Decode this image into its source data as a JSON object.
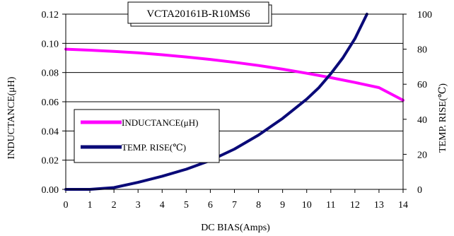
{
  "chart_data": {
    "type": "line",
    "title": "VCTA20161B-R10MS6",
    "xlabel": "DC BIAS(Amps)",
    "ylabel_left": "INDUCTANCE(μH)",
    "ylabel_right": "TEMP. RISE(℃)",
    "xlim": [
      0,
      14
    ],
    "ylim_left": [
      0,
      0.12
    ],
    "ylim_right": [
      0,
      100
    ],
    "x_ticks": [
      "0",
      "1",
      "2",
      "3",
      "4",
      "5",
      "6",
      "7",
      "8",
      "9",
      "10",
      "11",
      "12",
      "13",
      "14"
    ],
    "y_ticks_left": [
      "0.00",
      "0.02",
      "0.04",
      "0.06",
      "0.08",
      "0.10",
      "0.12"
    ],
    "y_ticks_right": [
      "0",
      "20",
      "40",
      "60",
      "80",
      "100"
    ],
    "grid": "horizontal",
    "legend_position": "center-left",
    "series": [
      {
        "name": "INDUCTANCE(μH)",
        "axis": "left",
        "color": "#ff00ff",
        "x": [
          0,
          1,
          2,
          3,
          4,
          5,
          6,
          7,
          8,
          9,
          10,
          11,
          12,
          13,
          14
        ],
        "y": [
          0.096,
          0.0953,
          0.0945,
          0.0935,
          0.0922,
          0.0907,
          0.089,
          0.087,
          0.0848,
          0.0823,
          0.0795,
          0.0765,
          0.0732,
          0.0697,
          0.061
        ]
      },
      {
        "name": "TEMP. RISE(℃)",
        "axis": "right",
        "color": "#0a0a78",
        "x": [
          0,
          1,
          1.5,
          2,
          3,
          4,
          5,
          6,
          7,
          8,
          9,
          10,
          10.5,
          11,
          11.5,
          12,
          12.5
        ],
        "y": [
          0,
          0,
          0.5,
          1,
          4,
          7.5,
          11.5,
          16.5,
          23,
          31,
          40.5,
          51.5,
          58,
          66,
          75,
          86,
          100
        ]
      }
    ]
  }
}
